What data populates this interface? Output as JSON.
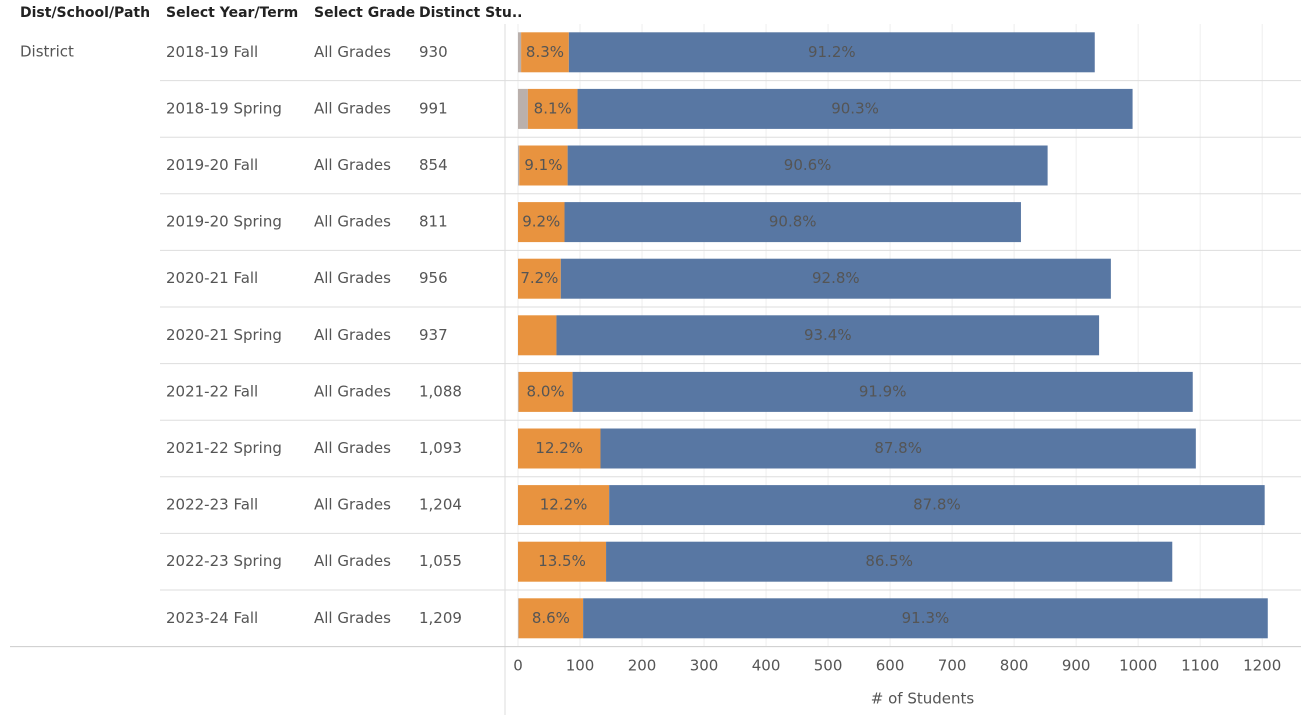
{
  "chart_data": {
    "type": "stacked_bar_table",
    "columns": [
      "Dist/School/Path",
      "Select Year/Term",
      "Select Grade",
      "Distinct Stu.."
    ],
    "group": "District",
    "categories": [
      "2018-19 Fall",
      "2018-19 Spring",
      "2019-20 Fall",
      "2019-20 Spring",
      "2020-21 Fall",
      "2020-21 Spring",
      "2021-22 Fall",
      "2021-22 Spring",
      "2022-23 Fall",
      "2022-23 Spring",
      "2023-24 Fall"
    ],
    "grades": [
      "All Grades",
      "All Grades",
      "All Grades",
      "All Grades",
      "All Grades",
      "All Grades",
      "All Grades",
      "All Grades",
      "All Grades",
      "All Grades",
      "All Grades"
    ],
    "distinct": [
      "930",
      "991",
      "854",
      "811",
      "956",
      "937",
      "1,088",
      "1,093",
      "1,204",
      "1,055",
      "1,209"
    ],
    "series": [
      {
        "color": "#bab0ac",
        "values": [
          5,
          16,
          2,
          0,
          0,
          0,
          1,
          0,
          0,
          0,
          1
        ]
      },
      {
        "color": "#e8933f",
        "values": [
          77,
          80,
          78,
          75,
          69,
          62,
          87,
          133,
          147,
          142,
          104
        ],
        "value_labels": [
          "8.3%",
          "8.1%",
          "9.1%",
          "9.2%",
          "7.2%",
          null,
          "8.0%",
          "12.2%",
          "12.2%",
          "13.5%",
          "8.6%"
        ],
        "label_color": "#222222"
      },
      {
        "color": "#5877a3",
        "values": [
          848,
          895,
          774,
          736,
          887,
          875,
          1000,
          960,
          1057,
          913,
          1104
        ],
        "value_labels": [
          "91.2%",
          "90.3%",
          "90.6%",
          "90.8%",
          "92.8%",
          "93.4%",
          "91.9%",
          "87.8%",
          "87.8%",
          "86.5%",
          "91.3%"
        ],
        "label_color": "#ffffff"
      }
    ],
    "xlabel": "# of Students",
    "xlim": [
      0,
      1240
    ],
    "xticks": [
      0,
      100,
      200,
      300,
      400,
      500,
      600,
      700,
      800,
      900,
      1000,
      1100,
      1200
    ],
    "grid": true
  }
}
